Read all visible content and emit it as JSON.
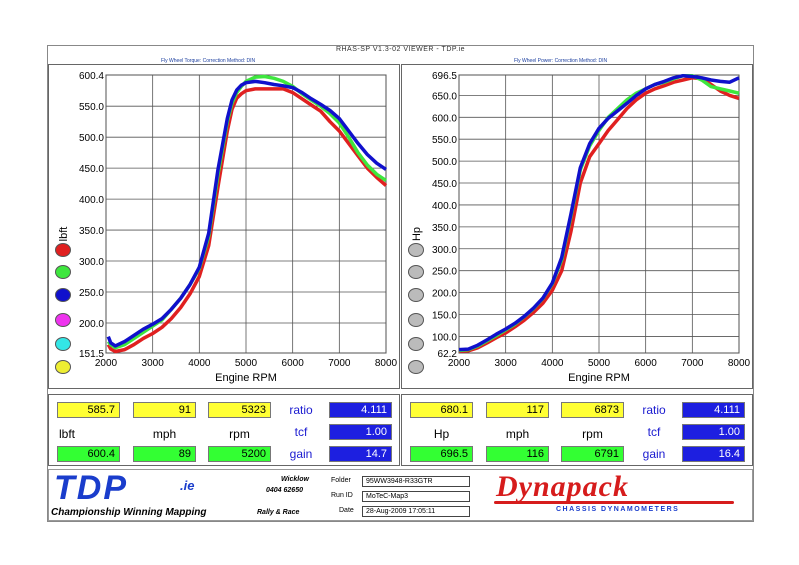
{
  "window_title": "RHAS-SP V1.3-02 VIEWER - TDP.ie",
  "left_subtitle": "Fly Wheel Torque:      Correction Method: DIN",
  "right_subtitle": "Fly Wheel Power:      Correction Method: DIN",
  "left_stats": {
    "row1": [
      "585.7",
      "91",
      "5323"
    ],
    "row2_labels": [
      "lbft",
      "mph",
      "rpm"
    ],
    "row3": [
      "600.4",
      "89",
      "5200"
    ],
    "right_labels": [
      "ratio",
      "tcf",
      "gain"
    ],
    "right_values": [
      "4.111",
      "1.00",
      "14.7"
    ]
  },
  "right_stats": {
    "row1": [
      "680.1",
      "117",
      "6873"
    ],
    "row2_labels": [
      "Hp",
      "mph",
      "rpm"
    ],
    "row3": [
      "696.5",
      "116",
      "6791"
    ],
    "right_labels": [
      "ratio",
      "tcf",
      "gain"
    ],
    "right_values": [
      "4.111",
      "1.00",
      "16.4"
    ]
  },
  "footer": {
    "logo": "TDP",
    "logo_suffix": ".ie",
    "tagline": "Championship Winning Mapping",
    "rally": "Rally & Race",
    "location": "Wicklow",
    "phone": "0404 62650",
    "folder_label": "Folder",
    "folder_value": "95WW3948-R33GTR",
    "runid_label": "Run ID",
    "runid_value": "MoTeC-Map3",
    "date_label": "Date",
    "date_value": "28-Aug-2009   17:05:11",
    "brand": "Dynapack",
    "brand_sub": "CHASSIS  DYNAMOMETERS"
  },
  "colors": {
    "red": "#e02020",
    "green": "#3ee63e",
    "blue": "#1010cc",
    "magenta": "#ee33ee",
    "cyan": "#33e6e6",
    "yellow": "#eeee33",
    "grey": "#aaaaaa"
  },
  "chart_data": [
    {
      "type": "line",
      "title": "",
      "xlabel": "Engine RPM",
      "ylabel": "lbft",
      "xlim": [
        2000,
        8000
      ],
      "ylim": [
        151.5,
        600.4
      ],
      "xticks": [
        "2000",
        "3000",
        "4000",
        "5000",
        "6000",
        "7000",
        "8000"
      ],
      "yticks": [
        "151.5",
        "200.0",
        "250.0",
        "300.0",
        "350.0",
        "400.0",
        "450.0",
        "500.0",
        "550.0",
        "600.4"
      ],
      "grid": true,
      "series": [
        {
          "color": "red",
          "x": [
            2050,
            2100,
            2200,
            2400,
            2600,
            2800,
            3000,
            3200,
            3400,
            3600,
            3800,
            4000,
            4200,
            4400,
            4600,
            4700,
            4800,
            4900,
            5000,
            5200,
            5400,
            5600,
            5800,
            6000,
            6200,
            6400,
            6600,
            6800,
            7000,
            7200,
            7400,
            7600,
            7800,
            8000
          ],
          "y": [
            165,
            158,
            154,
            157,
            165,
            175,
            183,
            193,
            207,
            225,
            247,
            275,
            325,
            420,
            510,
            545,
            563,
            570,
            575,
            578,
            578,
            578,
            578,
            572,
            562,
            552,
            542,
            525,
            510,
            490,
            470,
            450,
            435,
            422
          ]
        },
        {
          "color": "green",
          "x": [
            2050,
            2100,
            2200,
            2400,
            2600,
            2800,
            3000,
            3200,
            3400,
            3600,
            3800,
            4000,
            4200,
            4400,
            4600,
            4700,
            4800,
            4900,
            5000,
            5200,
            5400,
            5600,
            5800,
            6000,
            6200,
            6400,
            6600,
            6800,
            7000,
            7200,
            7400,
            7600,
            7800,
            8000
          ],
          "y": [
            170,
            165,
            160,
            165,
            175,
            185,
            195,
            205,
            222,
            240,
            262,
            288,
            340,
            440,
            525,
            555,
            572,
            582,
            590,
            597,
            598,
            595,
            590,
            582,
            570,
            560,
            550,
            538,
            523,
            500,
            475,
            455,
            440,
            430
          ]
        },
        {
          "color": "blue",
          "x": [
            2050,
            2100,
            2200,
            2400,
            2600,
            2800,
            3000,
            3200,
            3400,
            3600,
            3800,
            4000,
            4200,
            4400,
            4600,
            4700,
            4800,
            4900,
            5000,
            5200,
            5400,
            5600,
            5800,
            6000,
            6200,
            6400,
            6600,
            6800,
            7000,
            7200,
            7400,
            7600,
            7800,
            8000
          ],
          "y": [
            178,
            168,
            163,
            170,
            180,
            190,
            198,
            207,
            222,
            240,
            262,
            290,
            345,
            448,
            530,
            560,
            576,
            584,
            588,
            590,
            588,
            585,
            583,
            580,
            572,
            562,
            553,
            543,
            530,
            510,
            490,
            472,
            458,
            448
          ]
        }
      ]
    },
    {
      "type": "line",
      "title": "",
      "xlabel": "Engine RPM",
      "ylabel": "Hp",
      "xlim": [
        2000,
        8000
      ],
      "ylim": [
        62.2,
        696.5
      ],
      "xticks": [
        "2000",
        "3000",
        "4000",
        "5000",
        "6000",
        "7000",
        "8000"
      ],
      "yticks": [
        "62.2",
        "100.0",
        "150.0",
        "200.0",
        "250.0",
        "300.0",
        "350.0",
        "400.0",
        "450.0",
        "500.0",
        "550.0",
        "600.0",
        "650.0",
        "696.5"
      ],
      "grid": true,
      "series": [
        {
          "color": "red",
          "x": [
            2000,
            2200,
            2400,
            2600,
            2800,
            3000,
            3200,
            3400,
            3600,
            3800,
            4000,
            4200,
            4400,
            4600,
            4800,
            5000,
            5200,
            5400,
            5600,
            5800,
            6000,
            6200,
            6400,
            6600,
            6800,
            7000,
            7200,
            7400,
            7600,
            7800,
            8000
          ],
          "y": [
            66,
            67,
            74,
            85,
            97,
            108,
            122,
            137,
            155,
            176,
            205,
            250,
            340,
            450,
            510,
            540,
            570,
            595,
            620,
            640,
            655,
            665,
            672,
            680,
            685,
            690,
            688,
            675,
            660,
            650,
            643
          ]
        },
        {
          "color": "green",
          "x": [
            2000,
            2200,
            2400,
            2600,
            2800,
            3000,
            3200,
            3400,
            3600,
            3800,
            4000,
            4200,
            4400,
            4600,
            4800,
            5000,
            5200,
            5400,
            5600,
            5800,
            6000,
            6200,
            6400,
            6600,
            6800,
            7000,
            7200,
            7400,
            7600,
            7800,
            8000
          ],
          "y": [
            68,
            70,
            78,
            90,
            102,
            115,
            128,
            145,
            164,
            187,
            220,
            275,
            375,
            480,
            535,
            570,
            600,
            620,
            640,
            655,
            665,
            675,
            680,
            688,
            695,
            695,
            685,
            670,
            665,
            660,
            655
          ]
        },
        {
          "color": "blue",
          "x": [
            2000,
            2200,
            2400,
            2600,
            2800,
            3000,
            3200,
            3400,
            3600,
            3800,
            4000,
            4200,
            4400,
            4600,
            4800,
            5000,
            5200,
            5400,
            5600,
            5800,
            6000,
            6200,
            6400,
            6600,
            6800,
            7000,
            7200,
            7400,
            7600,
            7800,
            8000
          ],
          "y": [
            70,
            71,
            80,
            92,
            105,
            117,
            130,
            146,
            165,
            188,
            222,
            280,
            380,
            485,
            540,
            575,
            598,
            615,
            632,
            650,
            665,
            675,
            682,
            690,
            695,
            693,
            690,
            685,
            682,
            680,
            690
          ]
        }
      ]
    }
  ]
}
